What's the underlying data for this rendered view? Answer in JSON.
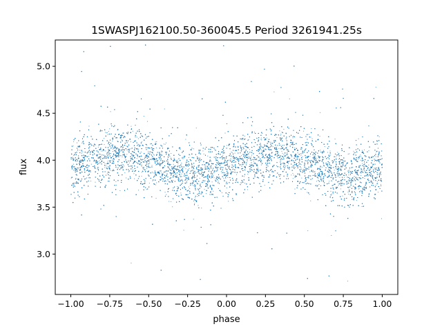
{
  "chart_data": {
    "type": "scatter",
    "title": "1SWASPJ162100.50-360045.5 Period 3261941.25s",
    "xlabel": "phase",
    "ylabel": "flux",
    "xlim": [
      -1.1,
      1.1
    ],
    "ylim": [
      2.57,
      5.28
    ],
    "x_ticks": [
      -1.0,
      -0.75,
      -0.5,
      -0.25,
      0.0,
      0.25,
      0.5,
      0.75,
      1.0
    ],
    "x_tick_labels": [
      "−1.00",
      "−0.75",
      "−0.50",
      "−0.25",
      "0.00",
      "0.25",
      "0.50",
      "0.75",
      "1.00"
    ],
    "y_ticks": [
      3.0,
      3.5,
      4.0,
      4.5,
      5.0
    ],
    "y_tick_labels": [
      "3.0",
      "3.5",
      "4.0",
      "4.5",
      "5.0"
    ],
    "grid": false,
    "marker_color": "#1f77b4",
    "phase_range": [
      -1.0,
      1.0
    ],
    "flux_profile": [
      {
        "phase": -1.0,
        "flux": 3.93
      },
      {
        "phase": -0.9,
        "flux": 3.98
      },
      {
        "phase": -0.8,
        "flux": 4.02
      },
      {
        "phase": -0.7,
        "flux": 4.07
      },
      {
        "phase": -0.6,
        "flux": 4.07
      },
      {
        "phase": -0.5,
        "flux": 4.0
      },
      {
        "phase": -0.4,
        "flux": 3.92
      },
      {
        "phase": -0.3,
        "flux": 3.86
      },
      {
        "phase": -0.2,
        "flux": 3.84
      },
      {
        "phase": -0.1,
        "flux": 3.86
      },
      {
        "phase": 0.0,
        "flux": 3.93
      },
      {
        "phase": 0.1,
        "flux": 3.98
      },
      {
        "phase": 0.2,
        "flux": 4.02
      },
      {
        "phase": 0.3,
        "flux": 4.07
      },
      {
        "phase": 0.4,
        "flux": 4.07
      },
      {
        "phase": 0.5,
        "flux": 4.0
      },
      {
        "phase": 0.6,
        "flux": 3.92
      },
      {
        "phase": 0.7,
        "flux": 3.86
      },
      {
        "phase": 0.8,
        "flux": 3.84
      },
      {
        "phase": 0.9,
        "flux": 3.86
      },
      {
        "phase": 1.0,
        "flux": 3.93
      }
    ],
    "flux_scatter_std": 0.15,
    "flux_outlier_range": [
      2.7,
      5.25
    ],
    "points_count": 14000
  }
}
